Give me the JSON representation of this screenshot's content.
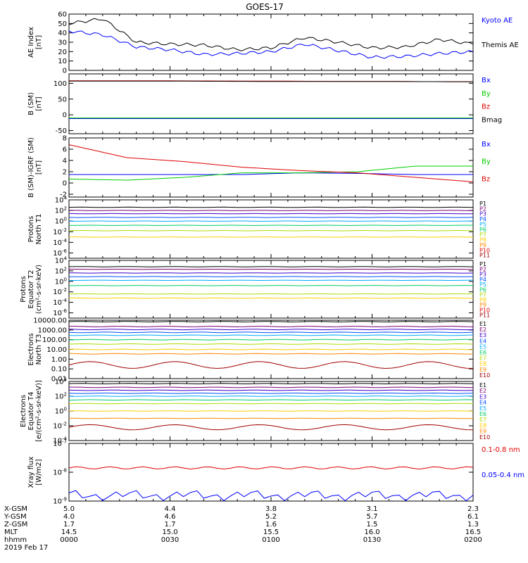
{
  "title": "GOES-17",
  "colors": {
    "black": "#000000",
    "blue": "#0000ff",
    "green": "#00cc00",
    "red": "#e00000",
    "darkred": "#a00000"
  },
  "chart_data": [
    {
      "id": "ae",
      "type": "line",
      "ylabel": [
        "AE Index",
        "[nT]"
      ],
      "ylim": [
        0,
        60
      ],
      "ticks": [
        0,
        10,
        20,
        30,
        40,
        50,
        60
      ],
      "scale": "linear",
      "x": [
        0,
        10,
        20,
        30,
        40,
        50,
        60,
        70,
        80,
        90,
        100,
        110,
        120
      ],
      "series": [
        {
          "name": "Kyoto AE",
          "color": "#0000ff",
          "values": [
            42,
            38,
            25,
            22,
            17,
            18,
            20,
            28,
            21,
            14,
            15,
            18,
            20
          ]
        },
        {
          "name": "Themis AE",
          "color": "#000000",
          "values": [
            50,
            55,
            30,
            28,
            27,
            22,
            24,
            35,
            30,
            24,
            25,
            33,
            28
          ]
        }
      ]
    },
    {
      "id": "bsm",
      "type": "line",
      "ylabel": [
        "B (SM)",
        "[nT]"
      ],
      "ylim": [
        -60,
        130
      ],
      "ticks": [
        -50,
        0,
        50,
        100
      ],
      "scale": "linear",
      "series": [
        {
          "name": "Bx",
          "color": "#0000ff",
          "values": [
            -12,
            -12,
            -12,
            -12,
            -12
          ]
        },
        {
          "name": "By",
          "color": "#00cc00",
          "values": [
            -10,
            -10,
            -10,
            -10,
            -10
          ]
        },
        {
          "name": "Bz",
          "color": "#e00000",
          "values": [
            108,
            108,
            107,
            106,
            105
          ]
        },
        {
          "name": "Bmag",
          "color": "#000000",
          "values": [
            107,
            107,
            106,
            106,
            105
          ]
        }
      ]
    },
    {
      "id": "bigrf",
      "type": "line",
      "ylabel": [
        "B (SM)-IGRF (SM)",
        "[nT]"
      ],
      "ylim": [
        -2.5,
        8
      ],
      "ticks": [
        -2,
        0,
        2,
        4,
        6,
        8
      ],
      "scale": "linear",
      "series": [
        {
          "name": "Bx",
          "color": "#0000ff",
          "values": [
            1.5,
            1.5,
            1.5,
            1.5,
            1.8,
            1.7,
            1.5,
            1.5
          ]
        },
        {
          "name": "By",
          "color": "#00cc00",
          "values": [
            0.7,
            0.5,
            1.0,
            1.8,
            1.8,
            2.0,
            3.0,
            3.0
          ]
        },
        {
          "name": "Bz",
          "color": "#e00000",
          "values": [
            6.8,
            4.5,
            3.8,
            2.8,
            2.2,
            1.8,
            1.0,
            0.2
          ]
        }
      ]
    },
    {
      "id": "protons_n",
      "type": "line",
      "ylabel": [
        "Protons",
        "North T1"
      ],
      "scale": "log",
      "ylim": [
        -7,
        4
      ],
      "ticks": [
        4,
        2,
        0,
        -2,
        -4,
        -6
      ],
      "series": [
        {
          "name": "P1",
          "color": "#000000",
          "level": 2.6
        },
        {
          "name": "P2",
          "color": "#7a0078",
          "level": 2.0
        },
        {
          "name": "P3",
          "color": "#3c00c8",
          "level": 1.4
        },
        {
          "name": "P4",
          "color": "#0050ff",
          "level": 0.7
        },
        {
          "name": "P5",
          "color": "#00aaff",
          "level": 0.0
        },
        {
          "name": "P6",
          "color": "#00cc66",
          "level": -0.8
        },
        {
          "name": "P7",
          "color": "#aadd00",
          "level": -1.8
        },
        {
          "name": "P8",
          "color": "#ffcc00",
          "level": -3.0
        },
        {
          "name": "P9",
          "color": "#ff8800",
          "level": null
        },
        {
          "name": "P10",
          "color": "#dd0000",
          "level": null
        },
        {
          "name": "P11",
          "color": "#a00000",
          "level": null
        }
      ]
    },
    {
      "id": "protons_e",
      "type": "line",
      "ylabel": [
        "Protons",
        "Equator T2",
        "(cm²-s-sr-keV)"
      ],
      "scale": "log",
      "ylim": [
        -7,
        4
      ],
      "ticks": [
        4,
        2,
        0,
        -2,
        -4,
        -6
      ],
      "series": [
        {
          "name": "P1",
          "color": "#000000",
          "level": 2.8
        },
        {
          "name": "P2",
          "color": "#7a0078",
          "level": 2.3
        },
        {
          "name": "P3",
          "color": "#3c00c8",
          "level": 1.6
        },
        {
          "name": "P4",
          "color": "#0050ff",
          "level": 0.9
        },
        {
          "name": "P5",
          "color": "#00aaff",
          "level": 0.2
        },
        {
          "name": "P6",
          "color": "#00cc66",
          "level": -0.8
        },
        {
          "name": "P7",
          "color": "#aadd00",
          "level": -2.4
        },
        {
          "name": "P8",
          "color": "#ffcc00",
          "level": -3.2
        },
        {
          "name": "P9",
          "color": "#ff8800",
          "level": null
        },
        {
          "name": "P10",
          "color": "#dd0000",
          "level": null
        },
        {
          "name": "P11",
          "color": "#a00000",
          "level": null
        }
      ]
    },
    {
      "id": "electrons_n",
      "type": "line",
      "ylabel": [
        "Electrons",
        "North T3"
      ],
      "scale": "log",
      "ylim": [
        -2,
        4
      ],
      "ticks": [
        "10000.00",
        "1000.00",
        "100.00",
        "10.00",
        "1.00",
        "0.10",
        "0.01"
      ],
      "series": [
        {
          "name": "E1",
          "color": "#000000",
          "level": 3.85
        },
        {
          "name": "E2",
          "color": "#7a0078",
          "level": 3.35
        },
        {
          "name": "E3",
          "color": "#3c00c8",
          "level": 3.05
        },
        {
          "name": "E4",
          "color": "#0050ff",
          "level": 2.75
        },
        {
          "name": "E5",
          "color": "#00aaff",
          "level": 2.45
        },
        {
          "name": "E6",
          "color": "#00cc66",
          "level": 2.0
        },
        {
          "name": "E7",
          "color": "#aadd00",
          "level": 1.55
        },
        {
          "name": "E8",
          "color": "#ffcc00",
          "level": 1.0
        },
        {
          "name": "E9",
          "color": "#ff8800",
          "level": 0.55
        },
        {
          "name": "E10",
          "color": "#a00000",
          "level": -0.6
        }
      ]
    },
    {
      "id": "electrons_e",
      "type": "line",
      "ylabel": [
        "Electrons",
        "Equator T4",
        "[e/(cm²-s-sr-keV)]"
      ],
      "scale": "log",
      "ylim": [
        -4,
        4
      ],
      "ticks": [
        4,
        2,
        0,
        -2,
        -4
      ],
      "series": [
        {
          "name": "E1",
          "color": "#000000",
          "level": 3.7
        },
        {
          "name": "E2",
          "color": "#7a0078",
          "level": 3.2
        },
        {
          "name": "E3",
          "color": "#3c00c8",
          "level": 2.8
        },
        {
          "name": "E4",
          "color": "#0050ff",
          "level": 2.4
        },
        {
          "name": "E5",
          "color": "#00aaff",
          "level": 2.0
        },
        {
          "name": "E6",
          "color": "#00cc66",
          "level": 1.5
        },
        {
          "name": "E7",
          "color": "#aadd00",
          "level": 1.0
        },
        {
          "name": "E8",
          "color": "#ffcc00",
          "level": 0.0
        },
        {
          "name": "E9",
          "color": "#ff8800",
          "level": -1.0
        },
        {
          "name": "E10",
          "color": "#a00000",
          "level": -2.2
        }
      ]
    },
    {
      "id": "xray",
      "type": "line",
      "ylabel": [
        "Xray flux",
        "[W/m2]"
      ],
      "scale": "log",
      "ylim": [
        -9,
        -7
      ],
      "ticks": [
        -7,
        -8,
        -9
      ],
      "series": [
        {
          "name": "0.1-0.8 nm",
          "color": "#e00000",
          "level": -7.85
        },
        {
          "name": "0.05-0.4 nm",
          "color": "#0000ff",
          "level": -8.8
        }
      ]
    }
  ],
  "axis_rows": [
    {
      "label": "X-GSM",
      "values": [
        "5.0",
        "4.4",
        "3.8",
        "3.1",
        "2.3"
      ]
    },
    {
      "label": "Y-GSM",
      "values": [
        "4.0",
        "4.6",
        "5.2",
        "5.7",
        "6.1"
      ]
    },
    {
      "label": "Z-GSM",
      "values": [
        "1.7",
        "1.7",
        "1.6",
        "1.5",
        "1.3"
      ]
    },
    {
      "label": "MLT",
      "values": [
        "14.5",
        "15.0",
        "15.5",
        "16.0",
        "16.5"
      ]
    },
    {
      "label": "hhmm",
      "values": [
        "0000",
        "0030",
        "0100",
        "0130",
        "0200"
      ]
    }
  ],
  "date": "2019 Feb 17"
}
